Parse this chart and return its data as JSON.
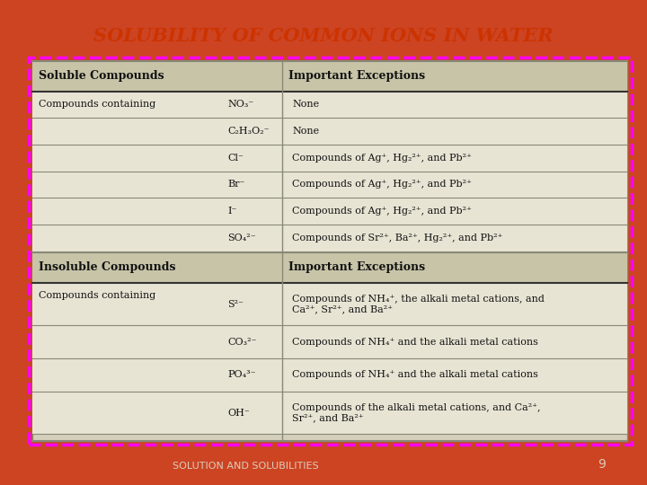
{
  "title": "SOLUBILITY OF COMMON IONS IN WATER",
  "title_color": "#CC3300",
  "bg_color": "#CC4422",
  "table_bg": "#D4CFBB",
  "table_white": "#E8E4D4",
  "header_bg": "#C8C4A8",
  "footer_text": "SOLUTION AND SOLUBILITIES",
  "footer_page": "9",
  "header_row": [
    "Soluble Compounds",
    "Important Exceptions"
  ],
  "header2_row": [
    "Insoluble Compounds",
    "Important Exceptions"
  ],
  "soluble_rows": [
    [
      "NO₃⁻",
      "None"
    ],
    [
      "C₂H₃O₂⁻",
      "None"
    ],
    [
      "Cl⁻",
      "Compounds of Ag⁺, Hg₂²⁺, and Pb²⁺"
    ],
    [
      "Br⁻",
      "Compounds of Ag⁺, Hg₂²⁺, and Pb²⁺"
    ],
    [
      "I⁻",
      "Compounds of Ag⁺, Hg₂²⁺, and Pb²⁺"
    ],
    [
      "SO₄²⁻",
      "Compounds of Sr²⁺, Ba²⁺, Hg₂²⁺, and Pb²⁺"
    ]
  ],
  "insoluble_rows": [
    [
      "S²⁻",
      "Compounds of NH₄⁺, the alkali metal cations, and\nCa²⁺, Sr²⁺, and Ba²⁺"
    ],
    [
      "CO₃²⁻",
      "Compounds of NH₄⁺ and the alkali metal cations"
    ],
    [
      "PO₄³⁻",
      "Compounds of NH₄⁺ and the alkali metal cations"
    ],
    [
      "OH⁻",
      "Compounds of the alkali metal cations, and Ca²⁺,\nSr²⁺, and Ba²⁺"
    ]
  ]
}
